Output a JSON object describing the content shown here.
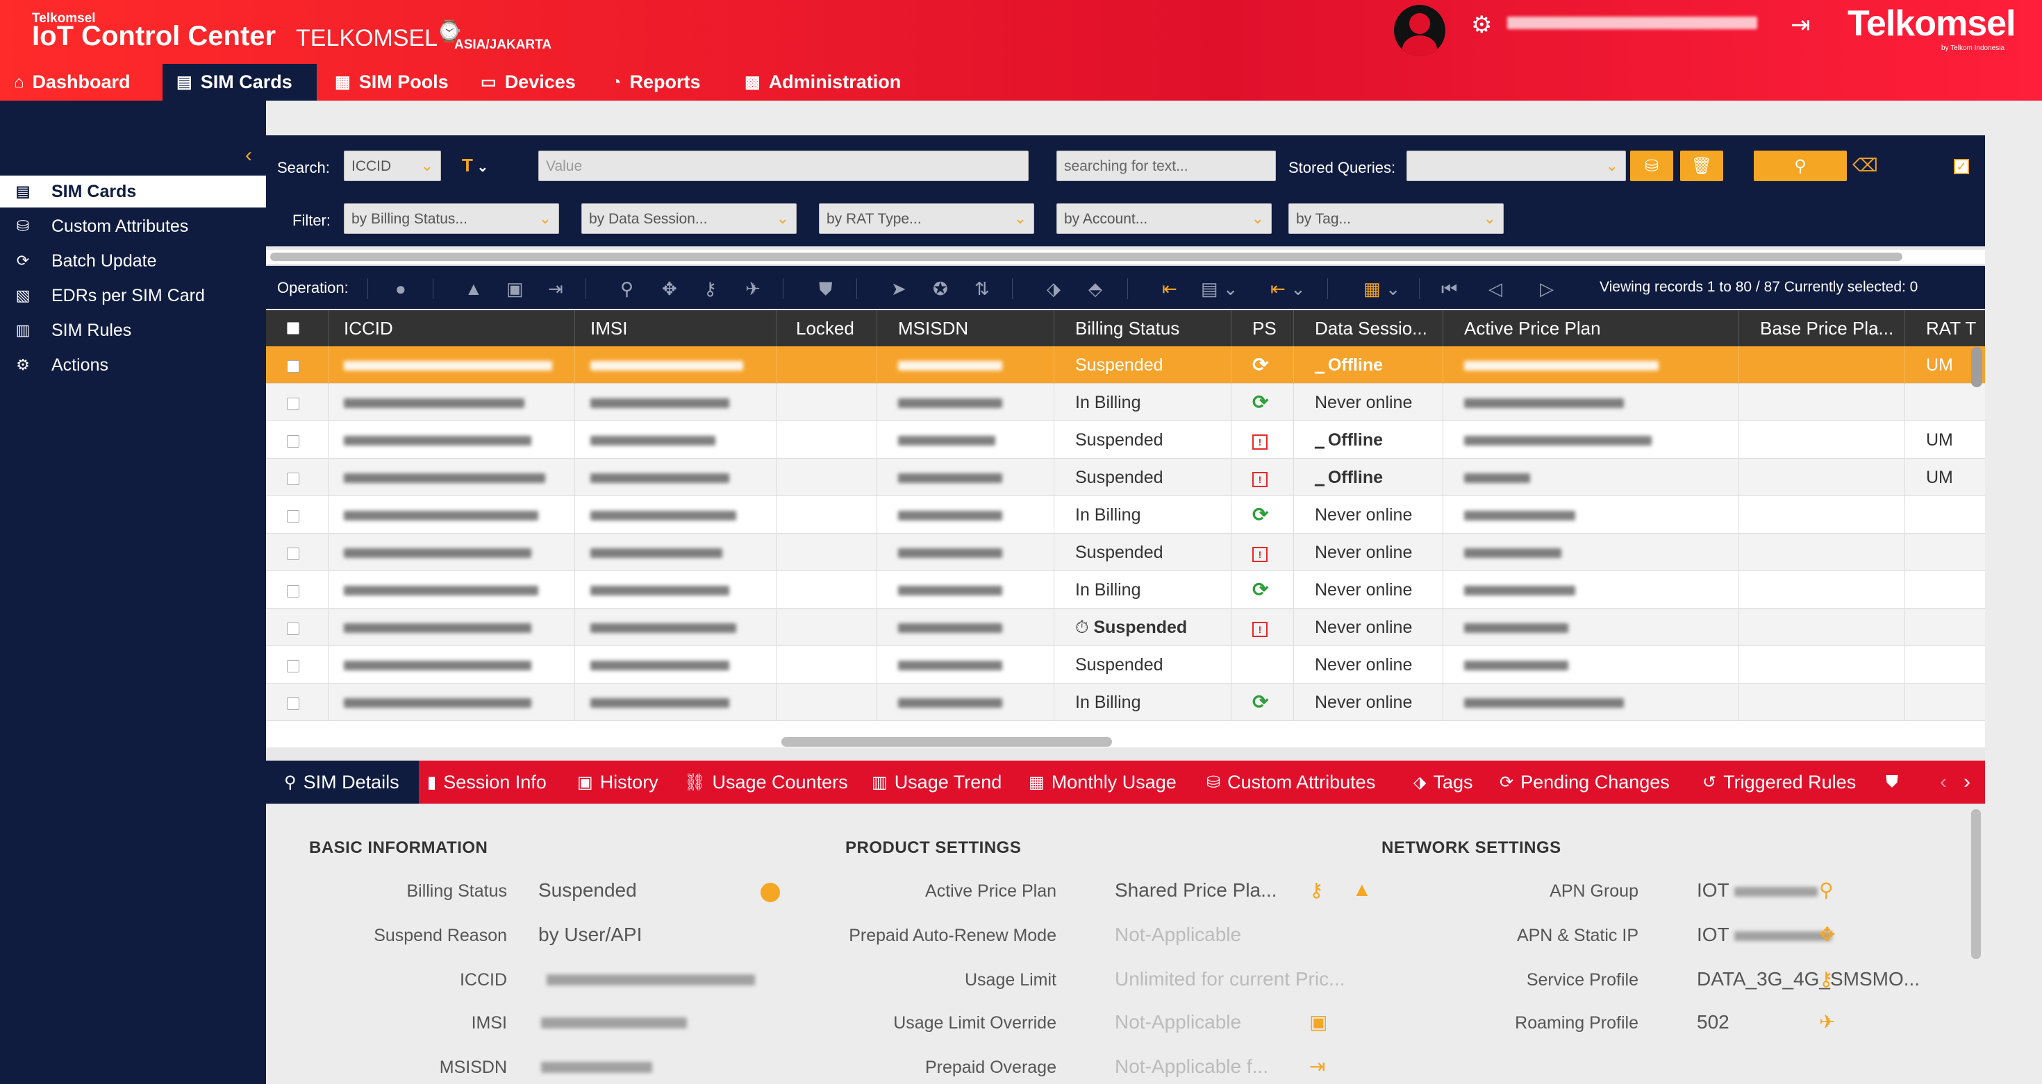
{
  "header": {
    "brand_small": "Telkomsel",
    "app_title": "IoT Control Center",
    "tenant": "TELKOMSEL",
    "timezone": "ASIA/JAKARTA",
    "brand": "Telkomsel",
    "brand_sub": "by Telkom Indonesia"
  },
  "nav": [
    "Dashboard",
    "SIM Cards",
    "SIM Pools",
    "Devices",
    "Reports",
    "Administration"
  ],
  "sidebar": [
    "SIM Cards",
    "Custom Attributes",
    "Batch Update",
    "EDRs per SIM Card",
    "SIM Rules",
    "Actions"
  ],
  "search": {
    "label": "Search:",
    "field": "ICCID",
    "value_placeholder": "Value",
    "text_placeholder": "searching for text...",
    "stored_label": "Stored Queries:",
    "filter_label": "Filter:",
    "filters": [
      "by Billing Status...",
      "by Data Session...",
      "by RAT Type...",
      "by Account...",
      "by Tag..."
    ]
  },
  "operation": {
    "label": "Operation:",
    "records": "Viewing records 1 to 80 / 87 Currently selected: 0"
  },
  "table": {
    "columns": [
      "ICCID",
      "IMSI",
      "Locked",
      "MSISDN",
      "Billing Status",
      "PS",
      "Data Sessio...",
      "Active Price Plan",
      "Base Price Pla...",
      "RAT T"
    ],
    "rows": [
      {
        "billing": "Suspended",
        "ps": "sync",
        "data": "Offline",
        "rat": "UM"
      },
      {
        "billing": "In Billing",
        "ps": "sync",
        "data": "Never online",
        "rat": ""
      },
      {
        "billing": "Suspended",
        "ps": "susp",
        "data": "Offline",
        "rat": "UM"
      },
      {
        "billing": "Suspended",
        "ps": "susp",
        "data": "Offline",
        "rat": "UM"
      },
      {
        "billing": "In Billing",
        "ps": "sync",
        "data": "Never online",
        "rat": ""
      },
      {
        "billing": "Suspended",
        "ps": "susp",
        "data": "Never online",
        "rat": ""
      },
      {
        "billing": "In Billing",
        "ps": "sync",
        "data": "Never online",
        "rat": ""
      },
      {
        "billing": "Suspended",
        "ps": "susp",
        "data": "Never online",
        "rat": ""
      },
      {
        "billing": "Suspended",
        "ps": "",
        "data": "Never online",
        "rat": ""
      },
      {
        "billing": "In Billing",
        "ps": "sync",
        "data": "Never online",
        "rat": ""
      }
    ]
  },
  "tabs": [
    "SIM Details",
    "Session Info",
    "History",
    "Usage Counters",
    "Usage Trend",
    "Monthly Usage",
    "Custom Attributes",
    "Tags",
    "Pending Changes",
    "Triggered Rules"
  ],
  "details": {
    "basic_title": "BASIC INFORMATION",
    "product_title": "PRODUCT SETTINGS",
    "network_title": "NETWORK SETTINGS",
    "basic": [
      {
        "label": "Billing Status",
        "value": "Suspended"
      },
      {
        "label": "Suspend Reason",
        "value": "by User/API"
      },
      {
        "label": "ICCID",
        "value": ""
      },
      {
        "label": "IMSI",
        "value": ""
      },
      {
        "label": "MSISDN",
        "value": ""
      }
    ],
    "product": [
      {
        "label": "Active Price Plan",
        "value": "Shared Price Pla..."
      },
      {
        "label": "Prepaid Auto-Renew Mode",
        "value": "Not-Applicable"
      },
      {
        "label": "Usage Limit",
        "value": "Unlimited for current Pric..."
      },
      {
        "label": "Usage Limit Override",
        "value": "Not-Applicable"
      },
      {
        "label": "Prepaid Overage",
        "value": "Not-Applicable f..."
      }
    ],
    "network": [
      {
        "label": "APN Group",
        "value": "IOT"
      },
      {
        "label": "APN & Static IP",
        "value": "IOT"
      },
      {
        "label": "Service Profile",
        "value": "DATA_3G_4G_SMSMO..."
      },
      {
        "label": "Roaming Profile",
        "value": "502"
      }
    ]
  },
  "colors": {
    "header_red": "#e0102b",
    "navy": "#0f1c40",
    "accent_orange": "#f5a623"
  }
}
